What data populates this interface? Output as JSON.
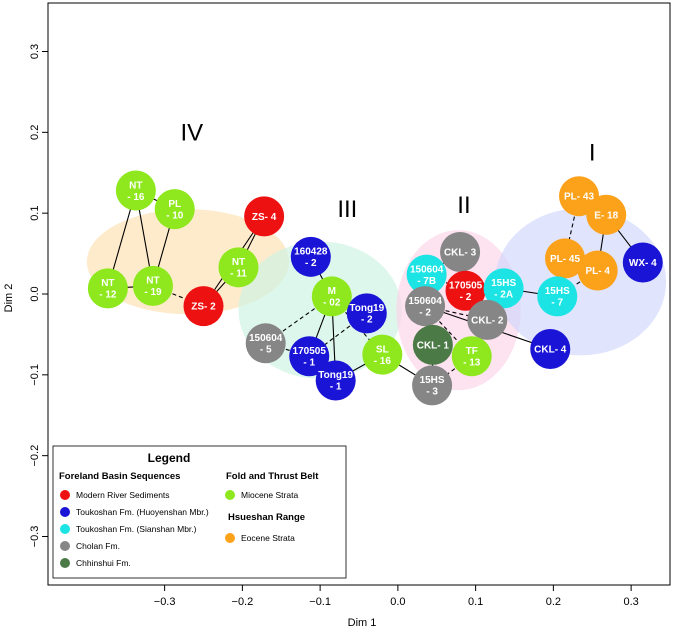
{
  "chart_data": {
    "type": "scatter",
    "title": "",
    "xlabel": "Dim 1",
    "ylabel": "Dim 2",
    "xlim": [
      -0.45,
      0.35
    ],
    "ylim": [
      -0.36,
      0.36
    ],
    "x_ticks": [
      "−0.3",
      "−0.2",
      "−0.1",
      "0.0",
      "0.1",
      "0.2",
      "0.3"
    ],
    "x_tick_values": [
      -0.3,
      -0.2,
      -0.1,
      0.0,
      0.1,
      0.2,
      0.3
    ],
    "y_ticks": [
      "−0.3",
      "−0.2",
      "−0.1",
      "0.0",
      "0.1",
      "0.2",
      "0.3"
    ],
    "y_tick_values": [
      -0.3,
      -0.2,
      -0.1,
      0.0,
      0.1,
      0.2,
      0.3
    ],
    "clusters": [
      {
        "label": "IV",
        "color": "#fce0b0",
        "cx": -0.27,
        "cy": 0.04,
        "rx": 0.13,
        "ry": 0.065,
        "label_x": -0.265,
        "label_y": 0.19
      },
      {
        "label": "III",
        "color": "#cdf3e3",
        "cx": -0.1,
        "cy": -0.02,
        "rx": 0.105,
        "ry": 0.085,
        "label_x": -0.065,
        "label_y": 0.095
      },
      {
        "label": "II",
        "color": "#fcd3e8",
        "cx": 0.078,
        "cy": -0.02,
        "rx": 0.08,
        "ry": 0.099,
        "label_x": 0.085,
        "label_y": 0.1
      },
      {
        "label": "I",
        "color": "#d0d6fa",
        "cx": 0.235,
        "cy": 0.015,
        "rx": 0.11,
        "ry": 0.091,
        "label_x": 0.25,
        "label_y": 0.165
      }
    ],
    "points": [
      {
        "id": "nt16",
        "label": [
          "NT",
          "- 16"
        ],
        "x": -0.337,
        "y": 0.128,
        "group": "miocene"
      },
      {
        "id": "pl10",
        "label": [
          "PL",
          "- 10"
        ],
        "x": -0.287,
        "y": 0.105,
        "group": "miocene"
      },
      {
        "id": "nt12",
        "label": [
          "NT",
          "- 12"
        ],
        "x": -0.373,
        "y": 0.007,
        "group": "miocene"
      },
      {
        "id": "nt19",
        "label": [
          "NT",
          "- 19"
        ],
        "x": -0.315,
        "y": 0.01,
        "group": "miocene"
      },
      {
        "id": "zs2",
        "label": [
          "ZS- 2"
        ],
        "x": -0.25,
        "y": -0.015,
        "group": "modern"
      },
      {
        "id": "nt11",
        "label": [
          "NT",
          "- 11"
        ],
        "x": -0.205,
        "y": 0.033,
        "group": "miocene"
      },
      {
        "id": "zs4",
        "label": [
          "ZS- 4"
        ],
        "x": -0.172,
        "y": 0.096,
        "group": "modern"
      },
      {
        "id": "160428",
        "label": [
          "160428",
          "- 2"
        ],
        "x": -0.112,
        "y": 0.046,
        "group": "huoyenshan"
      },
      {
        "id": "m02",
        "label": [
          "M",
          "- 02"
        ],
        "x": -0.085,
        "y": -0.003,
        "group": "miocene"
      },
      {
        "id": "tong192",
        "label": [
          "Tong19",
          "- 2"
        ],
        "x": -0.04,
        "y": -0.024,
        "group": "huoyenshan"
      },
      {
        "id": "1506045",
        "label": [
          "150604",
          "- 5"
        ],
        "x": -0.17,
        "y": -0.061,
        "group": "cholan"
      },
      {
        "id": "1705051",
        "label": [
          "170505",
          "- 1"
        ],
        "x": -0.114,
        "y": -0.077,
        "group": "huoyenshan"
      },
      {
        "id": "tong191",
        "label": [
          "Tong19",
          "- 1"
        ],
        "x": -0.08,
        "y": -0.107,
        "group": "huoyenshan"
      },
      {
        "id": "sl16",
        "label": [
          "SL",
          "- 16"
        ],
        "x": -0.02,
        "y": -0.075,
        "group": "miocene"
      },
      {
        "id": "ckl3",
        "label": [
          "CKL- 3"
        ],
        "x": 0.08,
        "y": 0.052,
        "group": "cholan"
      },
      {
        "id": "1506047b",
        "label": [
          "150604",
          "- 7B"
        ],
        "x": 0.037,
        "y": 0.024,
        "group": "sianshan"
      },
      {
        "id": "1705052",
        "label": [
          "170505",
          "- 2"
        ],
        "x": 0.087,
        "y": 0.004,
        "group": "modern"
      },
      {
        "id": "15hs2a",
        "label": [
          "15HS",
          "- 2A"
        ],
        "x": 0.136,
        "y": 0.007,
        "group": "sianshan"
      },
      {
        "id": "1506042",
        "label": [
          "150604",
          "- 2"
        ],
        "x": 0.035,
        "y": -0.015,
        "group": "cholan"
      },
      {
        "id": "ckl2",
        "label": [
          "CKL- 2"
        ],
        "x": 0.115,
        "y": -0.032,
        "group": "cholan"
      },
      {
        "id": "ckl1",
        "label": [
          "CKL- 1"
        ],
        "x": 0.045,
        "y": -0.063,
        "group": "chhinshui"
      },
      {
        "id": "tf13",
        "label": [
          "TF",
          "- 13"
        ],
        "x": 0.095,
        "y": -0.077,
        "group": "miocene"
      },
      {
        "id": "15hs3",
        "label": [
          "15HS",
          "- 3"
        ],
        "x": 0.044,
        "y": -0.113,
        "group": "cholan"
      },
      {
        "id": "ckl4",
        "label": [
          "CKL- 4"
        ],
        "x": 0.196,
        "y": -0.068,
        "group": "huoyenshan"
      },
      {
        "id": "pl43",
        "label": [
          "PL- 43"
        ],
        "x": 0.233,
        "y": 0.121,
        "group": "eocene"
      },
      {
        "id": "e18",
        "label": [
          "E- 18"
        ],
        "x": 0.268,
        "y": 0.098,
        "group": "eocene"
      },
      {
        "id": "pl45",
        "label": [
          "PL- 45"
        ],
        "x": 0.215,
        "y": 0.044,
        "group": "eocene"
      },
      {
        "id": "pl4",
        "label": [
          "PL- 4"
        ],
        "x": 0.257,
        "y": 0.029,
        "group": "eocene"
      },
      {
        "id": "wx4",
        "label": [
          "WX- 4"
        ],
        "x": 0.315,
        "y": 0.039,
        "group": "huoyenshan"
      },
      {
        "id": "15hs7",
        "label": [
          "15HS",
          "- 7"
        ],
        "x": 0.205,
        "y": -0.003,
        "group": "sianshan"
      }
    ],
    "edges": [
      {
        "from": "nt16",
        "to": "nt12",
        "style": "solid"
      },
      {
        "from": "nt16",
        "to": "pl10",
        "style": "solid"
      },
      {
        "from": "nt16",
        "to": "nt19",
        "style": "solid"
      },
      {
        "from": "pl10",
        "to": "nt19",
        "style": "solid"
      },
      {
        "from": "nt12",
        "to": "nt19",
        "style": "solid"
      },
      {
        "from": "nt19",
        "to": "zs2",
        "style": "dashed"
      },
      {
        "from": "zs2",
        "to": "nt11",
        "style": "solid"
      },
      {
        "from": "zs2",
        "to": "zs4",
        "style": "solid"
      },
      {
        "from": "nt11",
        "to": "zs4",
        "style": "solid"
      },
      {
        "from": "160428",
        "to": "m02",
        "style": "solid"
      },
      {
        "from": "m02",
        "to": "tong192",
        "style": "solid"
      },
      {
        "from": "m02",
        "to": "1506045",
        "style": "dashed"
      },
      {
        "from": "m02",
        "to": "1705051",
        "style": "solid"
      },
      {
        "from": "m02",
        "to": "tong191",
        "style": "solid"
      },
      {
        "from": "m02",
        "to": "sl16",
        "style": "dashed"
      },
      {
        "from": "tong192",
        "to": "1705051",
        "style": "dashed"
      },
      {
        "from": "1506045",
        "to": "1705051",
        "style": "dashed"
      },
      {
        "from": "sl16",
        "to": "tong191",
        "style": "solid"
      },
      {
        "from": "sl16",
        "to": "15hs3",
        "style": "solid"
      },
      {
        "from": "ckl3",
        "to": "1506047b",
        "style": "solid"
      },
      {
        "from": "1506047b",
        "to": "1506042",
        "style": "solid"
      },
      {
        "from": "1506047b",
        "to": "1705052",
        "style": "dashed"
      },
      {
        "from": "1705052",
        "to": "15hs2a",
        "style": "dashed"
      },
      {
        "from": "1705052",
        "to": "ckl2",
        "style": "dashed"
      },
      {
        "from": "1506042",
        "to": "ckl2",
        "style": "dashed"
      },
      {
        "from": "1506042",
        "to": "ckl1",
        "style": "dashed"
      },
      {
        "from": "1506042",
        "to": "tf13",
        "style": "dashed"
      },
      {
        "from": "1506042",
        "to": "ckl4",
        "style": "solid"
      },
      {
        "from": "ckl1",
        "to": "tf13",
        "style": "dashed"
      },
      {
        "from": "ckl1",
        "to": "15hs3",
        "style": "solid"
      },
      {
        "from": "tf13",
        "to": "15hs3",
        "style": "dashed"
      },
      {
        "from": "15hs2a",
        "to": "15hs7",
        "style": "solid"
      },
      {
        "from": "pl43",
        "to": "pl45",
        "style": "dashed"
      },
      {
        "from": "pl43",
        "to": "e18",
        "style": "solid"
      },
      {
        "from": "e18",
        "to": "wx4",
        "style": "solid"
      },
      {
        "from": "pl45",
        "to": "pl4",
        "style": "solid"
      },
      {
        "from": "pl4",
        "to": "e18",
        "style": "solid"
      },
      {
        "from": "pl4",
        "to": "15hs7",
        "style": "dashed"
      }
    ],
    "legend": {
      "title": "Legend",
      "position": "bottom-left",
      "heading_foreland": "Foreland Basin Sequences",
      "heading_fold": "Fold and Thrust Belt",
      "heading_hsueshan": "Hsueshan Range",
      "groups": {
        "modern": {
          "name": "Modern River Sediments",
          "color": "#ee1111"
        },
        "huoyenshan": {
          "name": "Toukoshan Fm. (Huoyenshan Mbr.)",
          "color": "#1a14d6"
        },
        "sianshan": {
          "name": "Toukoshan Fm. (Sianshan Mbr.)",
          "color": "#1de4e4"
        },
        "cholan": {
          "name": "Cholan Fm.",
          "color": "#868686"
        },
        "chhinshui": {
          "name": "Chhinshui Fm.",
          "color": "#4c7a47"
        },
        "miocene": {
          "name": "Miocene Strata",
          "color": "#8ee81d"
        },
        "eocene": {
          "name": "Eocene Strata",
          "color": "#fca11a"
        }
      }
    }
  }
}
